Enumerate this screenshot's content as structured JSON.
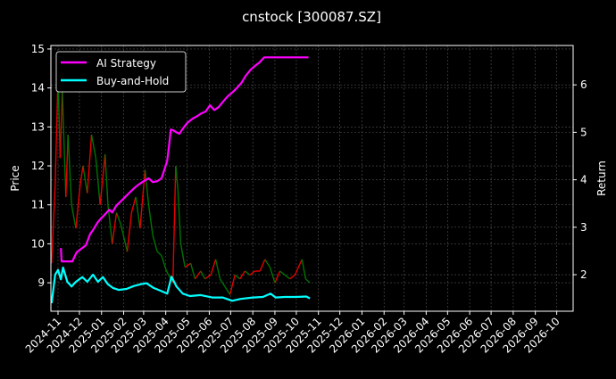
{
  "chart_data": {
    "type": "line",
    "title": "cnstock [300087.SZ]",
    "ylabel": "Price",
    "y2label": "Return",
    "xlim": [
      "2024-10-22",
      "2026-10-24"
    ],
    "ylim": [
      8.27,
      15.09
    ],
    "y2lim": [
      1.23,
      6.83
    ],
    "grid": true,
    "legend_position": "top-left",
    "x_ticks": [
      "2024-11",
      "2024-12",
      "2025-01",
      "2025-02",
      "2025-03",
      "2025-04",
      "2025-05",
      "2025-06",
      "2025-07",
      "2025-08",
      "2025-09",
      "2025-10",
      "2025-11",
      "2025-12",
      "2026-01",
      "2026-02",
      "2026-03",
      "2026-04",
      "2026-05",
      "2026-06",
      "2026-07",
      "2026-08",
      "2026-09",
      "2026-10"
    ],
    "y_ticks": [
      9,
      10,
      11,
      12,
      13,
      14,
      15
    ],
    "y2_ticks": [
      2,
      3,
      4,
      5,
      6
    ],
    "colors": {
      "up": "#ff0000",
      "down": "#008000",
      "strategy": "#ff00ff",
      "buy_hold": "#00ffff",
      "background": "#000000",
      "grid": "#555555"
    },
    "price": {
      "x": [
        "2024-10-23",
        "2024-10-28",
        "2024-11-01",
        "2024-11-04",
        "2024-11-07",
        "2024-11-12",
        "2024-11-15",
        "2024-11-20",
        "2024-11-26",
        "2024-12-02",
        "2024-12-06",
        "2024-12-12",
        "2024-12-18",
        "2024-12-24",
        "2024-12-30",
        "2025-01-06",
        "2025-01-10",
        "2025-01-16",
        "2025-01-22",
        "2025-01-28",
        "2025-02-06",
        "2025-02-12",
        "2025-02-18",
        "2025-02-24",
        "2025-03-03",
        "2025-03-08",
        "2025-03-14",
        "2025-03-20",
        "2025-03-26",
        "2025-04-02",
        "2025-04-08",
        "2025-04-11",
        "2025-04-15",
        "2025-04-18",
        "2025-04-22",
        "2025-04-28",
        "2025-05-06",
        "2025-05-12",
        "2025-05-20",
        "2025-05-26",
        "2025-06-03",
        "2025-06-10",
        "2025-06-16",
        "2025-06-23",
        "2025-06-30",
        "2025-07-07",
        "2025-07-14",
        "2025-07-21",
        "2025-07-28",
        "2025-08-04",
        "2025-08-11",
        "2025-08-18",
        "2025-08-25",
        "2025-09-01",
        "2025-09-08",
        "2025-09-15",
        "2025-09-22",
        "2025-09-29",
        "2025-10-09",
        "2025-10-14",
        "2025-10-20"
      ],
      "close": [
        9.5,
        11.5,
        14.3,
        12.2,
        13.9,
        11.2,
        12.8,
        11.0,
        10.4,
        11.5,
        12.0,
        11.3,
        12.8,
        12.2,
        11.0,
        12.3,
        11.0,
        10.0,
        10.8,
        10.5,
        9.8,
        10.8,
        11.2,
        10.4,
        11.9,
        11.0,
        10.2,
        9.8,
        9.7,
        9.3,
        9.1,
        9.0,
        12.0,
        11.4,
        10.0,
        9.4,
        9.5,
        9.1,
        9.3,
        9.1,
        9.2,
        9.6,
        9.1,
        8.9,
        8.7,
        9.2,
        9.1,
        9.3,
        9.2,
        9.3,
        9.3,
        9.6,
        9.4,
        9.0,
        9.3,
        9.2,
        9.1,
        9.2,
        9.6,
        9.1,
        9.0
      ]
    },
    "series": [
      {
        "name": "AI Strategy",
        "x": [
          "2024-11-05",
          "2024-11-06",
          "2024-11-21",
          "2024-11-27",
          "2024-12-10",
          "2024-12-16",
          "2024-12-20",
          "2024-12-26",
          "2024-12-31",
          "2025-01-04",
          "2025-01-12",
          "2025-01-16",
          "2025-01-22",
          "2025-01-29",
          "2025-02-04",
          "2025-02-10",
          "2025-02-17",
          "2025-02-23",
          "2025-03-01",
          "2025-03-08",
          "2025-03-14",
          "2025-03-20",
          "2025-03-26",
          "2025-03-30",
          "2025-04-03",
          "2025-04-06",
          "2025-04-08",
          "2025-04-12",
          "2025-04-16",
          "2025-04-20",
          "2025-04-27",
          "2025-05-02",
          "2025-05-09",
          "2025-05-15",
          "2025-05-21",
          "2025-05-27",
          "2025-06-02",
          "2025-06-08",
          "2025-06-14",
          "2025-06-21",
          "2025-06-27",
          "2025-07-04",
          "2025-07-10",
          "2025-07-16",
          "2025-07-22",
          "2025-07-29",
          "2025-08-04",
          "2025-08-10",
          "2025-08-17",
          "2025-10-18"
        ],
        "values": [
          2.56,
          2.28,
          2.28,
          2.47,
          2.62,
          2.86,
          2.94,
          3.09,
          3.18,
          3.24,
          3.37,
          3.31,
          3.46,
          3.56,
          3.65,
          3.74,
          3.84,
          3.91,
          3.97,
          4.03,
          3.95,
          3.97,
          4.03,
          4.21,
          4.4,
          4.78,
          5.06,
          5.04,
          5.0,
          4.97,
          5.12,
          5.21,
          5.29,
          5.34,
          5.4,
          5.44,
          5.57,
          5.47,
          5.53,
          5.66,
          5.76,
          5.85,
          5.94,
          6.04,
          6.19,
          6.32,
          6.4,
          6.47,
          6.58,
          6.58
        ]
      },
      {
        "name": "Buy-and-Hold",
        "x": [
          "2024-10-23",
          "2024-10-28",
          "2024-11-01",
          "2024-11-05",
          "2024-11-08",
          "2024-11-14",
          "2024-11-20",
          "2024-11-26",
          "2024-12-05",
          "2024-12-12",
          "2024-12-20",
          "2024-12-27",
          "2025-01-03",
          "2025-01-10",
          "2025-01-17",
          "2025-01-25",
          "2025-02-05",
          "2025-02-15",
          "2025-02-25",
          "2025-03-05",
          "2025-03-15",
          "2025-03-25",
          "2025-04-03",
          "2025-04-09",
          "2025-04-16",
          "2025-04-25",
          "2025-05-05",
          "2025-05-20",
          "2025-06-05",
          "2025-06-20",
          "2025-07-03",
          "2025-07-15",
          "2025-08-01",
          "2025-08-15",
          "2025-08-26",
          "2025-09-02",
          "2025-09-15",
          "2025-10-01",
          "2025-10-15",
          "2025-10-20"
        ],
        "values": [
          1.4,
          2.0,
          2.1,
          1.9,
          2.15,
          1.85,
          1.75,
          1.85,
          1.95,
          1.85,
          2.0,
          1.85,
          1.95,
          1.8,
          1.72,
          1.68,
          1.7,
          1.76,
          1.8,
          1.82,
          1.72,
          1.66,
          1.6,
          1.96,
          1.75,
          1.6,
          1.55,
          1.57,
          1.52,
          1.52,
          1.45,
          1.49,
          1.52,
          1.53,
          1.6,
          1.52,
          1.53,
          1.53,
          1.54,
          1.5
        ]
      }
    ]
  }
}
